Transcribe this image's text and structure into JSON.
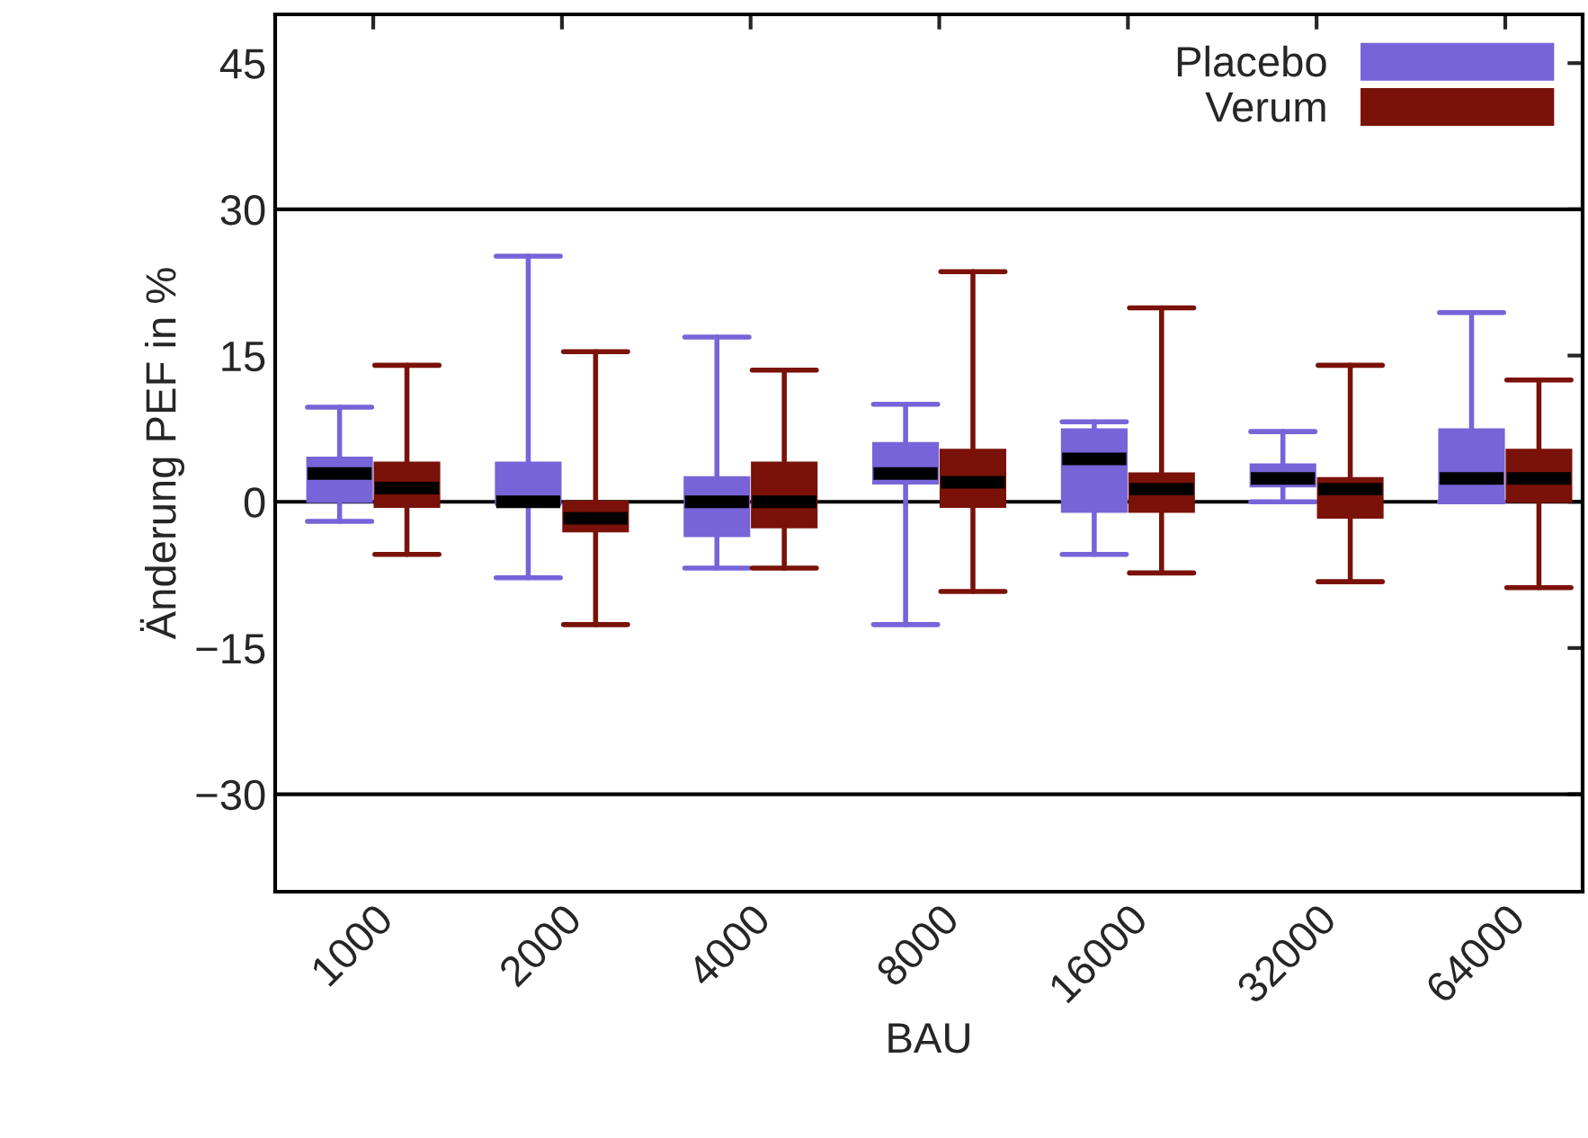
{
  "chart_data": {
    "type": "box",
    "xlabel": "BAU",
    "ylabel": "Änderung PEF in %",
    "categories": [
      "1000",
      "2000",
      "4000",
      "8000",
      "16000",
      "32000",
      "64000"
    ],
    "ylim": [
      -40,
      50
    ],
    "yticks": [
      {
        "value": -30,
        "label": "−30"
      },
      {
        "value": -15,
        "label": "−15"
      },
      0,
      15,
      30,
      45
    ],
    "grid": false,
    "legend": "top right",
    "ref_lines": [
      {
        "axis": "y",
        "value": 30,
        "color": "#000000"
      },
      {
        "axis": "y",
        "value": 0,
        "color": "#000000"
      },
      {
        "axis": "y",
        "value": -30,
        "color": "#000000"
      }
    ],
    "series": [
      {
        "name": "Placebo",
        "color": "#7764d8",
        "boxes": [
          {
            "low": -2.0,
            "q1": 0,
            "median": 2.9,
            "q3": 4.5,
            "high": 9.7
          },
          {
            "low": -7.8,
            "q1": -0.3,
            "median": 0,
            "q3": 4.0,
            "high": 25.2
          },
          {
            "low": -6.8,
            "q1": -3.5,
            "median": 0,
            "q3": 2.5,
            "high": 16.9
          },
          {
            "low": -12.6,
            "q1": 1.9,
            "median": 2.9,
            "q3": 6.0,
            "high": 10.0
          },
          {
            "low": -5.4,
            "q1": -1.0,
            "median": 4.4,
            "q3": 7.4,
            "high": 8.2
          },
          {
            "low": 0,
            "q1": 1.6,
            "median": 2.4,
            "q3": 3.8,
            "high": 7.2
          },
          {
            "low": 0,
            "q1": 0,
            "median": 2.4,
            "q3": 7.4,
            "high": 19.4
          }
        ]
      },
      {
        "name": "Verum",
        "color": "#7a1209",
        "boxes": [
          {
            "low": -5.4,
            "q1": -0.5,
            "median": 1.4,
            "q3": 4.0,
            "high": 14.0
          },
          {
            "low": -12.6,
            "q1": -3.0,
            "median": -1.7,
            "q3": 0,
            "high": 15.4
          },
          {
            "low": -6.8,
            "q1": -2.6,
            "median": 0,
            "q3": 4.0,
            "high": 13.5
          },
          {
            "low": -9.2,
            "q1": -0.5,
            "median": 2.0,
            "q3": 5.3,
            "high": 23.6
          },
          {
            "low": -7.3,
            "q1": -1.0,
            "median": 1.3,
            "q3": 2.9,
            "high": 19.9
          },
          {
            "low": -8.2,
            "q1": -1.6,
            "median": 1.3,
            "q3": 2.4,
            "high": 14.0
          },
          {
            "low": -8.8,
            "q1": 0,
            "median": 2.4,
            "q3": 5.3,
            "high": 12.5
          }
        ]
      }
    ]
  }
}
